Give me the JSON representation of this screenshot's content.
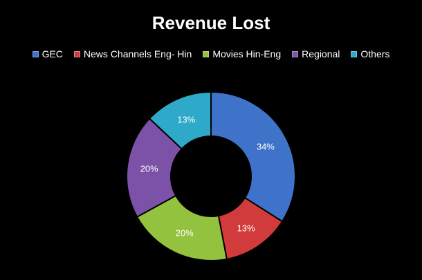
{
  "chart_data": {
    "type": "pie",
    "title": "Revenue Lost",
    "legend_position": "top",
    "categories": [
      "GEC",
      "News Channels Eng- Hin",
      "Movies Hin-Eng",
      "Regional",
      "Others"
    ],
    "values": [
      34,
      13,
      20,
      20,
      13
    ],
    "data_labels": [
      "34%",
      "13%",
      "20%",
      "20%",
      "13%"
    ],
    "colors": [
      "#3f73c9",
      "#d23b3b",
      "#92c23e",
      "#7b52a8",
      "#2fa9c9"
    ],
    "hole": true
  }
}
